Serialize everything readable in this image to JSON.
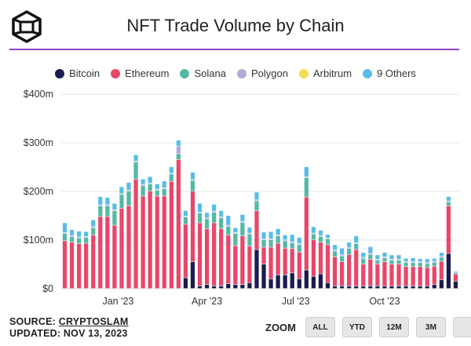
{
  "header": {
    "title": "NFT Trade Volume by Chain",
    "logo_icon": "cryptoslam-cube-logo",
    "accent_color": "#8e44c9"
  },
  "legend": [
    {
      "name": "Bitcoin",
      "color": "#1b1b4e"
    },
    {
      "name": "Ethereum",
      "color": "#e8476a"
    },
    {
      "name": "Solana",
      "color": "#55b8a3"
    },
    {
      "name": "Polygon",
      "color": "#b3a9d9"
    },
    {
      "name": "Arbitrum",
      "color": "#f5da55"
    },
    {
      "name": "9 Others",
      "color": "#58bde6"
    }
  ],
  "chart_data": {
    "type": "bar",
    "stacked": true,
    "ylim": [
      0,
      400
    ],
    "yticks": [
      "$0",
      "$100m",
      "$200m",
      "$300m",
      "$400m"
    ],
    "yticks_values": [
      0,
      100,
      200,
      300,
      400
    ],
    "xticks": [
      {
        "label": "Jan '23",
        "index": 7.5
      },
      {
        "label": "Apr '23",
        "index": 20
      },
      {
        "label": "Jul '23",
        "index": 32.5
      },
      {
        "label": "Oct '23",
        "index": 45
      }
    ],
    "grid": true,
    "series": [
      {
        "name": "Bitcoin",
        "values": [
          0,
          0,
          0,
          0,
          0,
          0,
          0,
          0,
          0,
          0,
          0,
          0,
          0,
          0,
          0,
          0,
          0,
          22,
          55,
          5,
          8,
          5,
          5,
          10,
          8,
          8,
          12,
          80,
          50,
          20,
          28,
          28,
          32,
          20,
          38,
          25,
          30,
          12,
          5,
          5,
          5,
          5,
          5,
          5,
          5,
          5,
          5,
          5,
          5,
          5,
          5,
          5,
          8,
          18,
          72,
          15
        ]
      },
      {
        "name": "Ethereum",
        "values": [
          98,
          95,
          92,
          93,
          110,
          148,
          148,
          130,
          165,
          170,
          225,
          190,
          200,
          190,
          190,
          220,
          265,
          110,
          145,
          130,
          115,
          130,
          118,
          100,
          80,
          100,
          75,
          80,
          35,
          65,
          65,
          55,
          50,
          55,
          150,
          75,
          65,
          78,
          60,
          50,
          65,
          75,
          45,
          55,
          45,
          50,
          45,
          45,
          40,
          40,
          40,
          38,
          38,
          38,
          98,
          15
        ]
      },
      {
        "name": "Solana",
        "values": [
          15,
          12,
          12,
          12,
          15,
          22,
          22,
          30,
          28,
          30,
          35,
          22,
          15,
          12,
          15,
          15,
          12,
          15,
          22,
          20,
          20,
          22,
          22,
          18,
          25,
          28,
          25,
          20,
          15,
          15,
          15,
          15,
          12,
          15,
          40,
          12,
          12,
          12,
          12,
          12,
          12,
          12,
          12,
          10,
          8,
          8,
          8,
          8,
          8,
          8,
          8,
          8,
          8,
          8,
          8,
          2
        ]
      },
      {
        "name": "Polygon",
        "values": [
          2,
          2,
          2,
          2,
          2,
          2,
          2,
          2,
          2,
          2,
          2,
          2,
          2,
          2,
          2,
          2,
          15,
          2,
          2,
          2,
          2,
          2,
          2,
          2,
          2,
          2,
          2,
          2,
          2,
          2,
          2,
          2,
          2,
          2,
          2,
          2,
          2,
          2,
          2,
          2,
          2,
          2,
          2,
          2,
          2,
          2,
          2,
          2,
          2,
          2,
          2,
          2,
          2,
          2,
          2,
          0
        ]
      },
      {
        "name": "Arbitrum",
        "values": [
          0,
          0,
          0,
          0,
          0,
          0,
          0,
          0,
          0,
          0,
          0,
          0,
          0,
          0,
          0,
          0,
          0,
          0,
          0,
          0,
          0,
          0,
          0,
          0,
          0,
          0,
          0,
          0,
          0,
          0,
          0,
          0,
          0,
          0,
          0,
          0,
          0,
          0,
          0,
          0,
          0,
          0,
          0,
          0,
          0,
          0,
          0,
          0,
          0,
          0,
          0,
          0,
          0,
          0,
          0,
          0
        ]
      },
      {
        "name": "9 Others",
        "values": [
          20,
          12,
          12,
          10,
          14,
          17,
          15,
          13,
          14,
          16,
          13,
          11,
          13,
          11,
          14,
          13,
          13,
          11,
          15,
          18,
          11,
          14,
          13,
          20,
          10,
          14,
          12,
          16,
          14,
          15,
          13,
          10,
          15,
          13,
          20,
          13,
          11,
          7,
          11,
          14,
          11,
          14,
          10,
          14,
          9,
          9,
          9,
          9,
          7,
          8,
          6,
          8,
          6,
          8,
          9,
          3
        ]
      }
    ]
  },
  "footer": {
    "source_prefix": "SOURCE:",
    "source_name": "CRYPTOSLAM",
    "updated": "UPDATED: NOV 13, 2023"
  },
  "zoom": {
    "label": "ZOOM",
    "buttons": [
      "ALL",
      "YTD",
      "12M",
      "3M",
      ""
    ]
  }
}
